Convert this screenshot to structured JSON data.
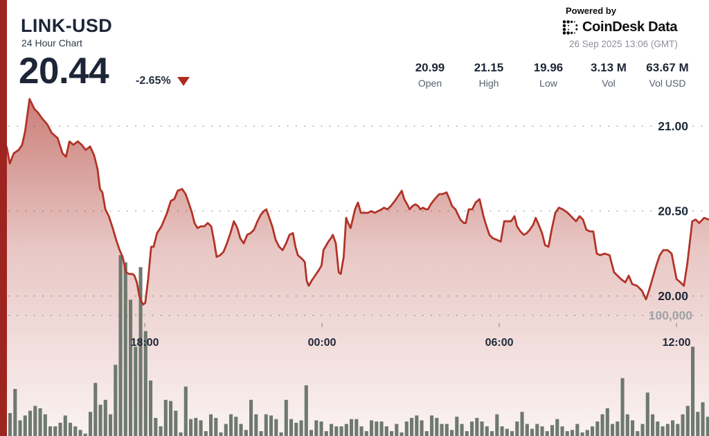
{
  "header": {
    "symbol": "LINK-USD",
    "subtitle": "24 Hour Chart",
    "price": "20.44",
    "change": "-2.65%",
    "change_direction": "down",
    "powered_by": "Powered by",
    "provider": "CoinDesk Data",
    "timestamp": "26 Sep 2025 13:06 (GMT)"
  },
  "stats": [
    {
      "value": "20.99",
      "label": "Open"
    },
    {
      "value": "21.15",
      "label": "High"
    },
    {
      "value": "19.96",
      "label": "Low"
    },
    {
      "value": "3.13 M",
      "label": "Vol"
    },
    {
      "value": "63.67 M",
      "label": "Vol USD"
    }
  ],
  "colors": {
    "accent_line_red": "#b23327",
    "left_strip_red": "#9e2420",
    "volume_bar": "#6e796f",
    "navy_text": "#1e2838",
    "label_gray": "#55606e",
    "timestamp_gray": "#8d9097",
    "grid_dot_gray": "#9aa3ae",
    "volume_label_gray": "#a0a3a8"
  },
  "chart_data": {
    "type": "area",
    "title": "LINK-USD 24 hour price with volume",
    "period_minutes": 1440,
    "summary": {
      "open": 20.99,
      "high": 21.15,
      "low": 19.96,
      "close": 20.44,
      "volume": "3.13 M",
      "volume_usd": "63.67 M"
    },
    "grid": "horizontal-dotted",
    "x_axis": {
      "ticks": [
        {
          "minute": 294,
          "label": "18:00"
        },
        {
          "minute": 654,
          "label": "00:00"
        },
        {
          "minute": 1014,
          "label": "06:00"
        },
        {
          "minute": 1374,
          "label": "12:00"
        }
      ]
    },
    "y_axis": {
      "side": "right",
      "ticks": [
        {
          "price": 21.0,
          "label": "21.00"
        },
        {
          "price": 20.5,
          "label": "20.50"
        },
        {
          "price": 20.0,
          "label": "20.00"
        }
      ],
      "range": [
        19.9,
        21.17
      ]
    },
    "volume_axis": {
      "tick_label": "100,000",
      "tick_value_k": 100
    },
    "price_points": [
      [
        0,
        20.99
      ],
      [
        14,
        20.87
      ],
      [
        20,
        20.78
      ],
      [
        28,
        20.84
      ],
      [
        38,
        20.86
      ],
      [
        45,
        20.89
      ],
      [
        51,
        20.97
      ],
      [
        60,
        21.16
      ],
      [
        70,
        21.1
      ],
      [
        77,
        21.08
      ],
      [
        87,
        21.04
      ],
      [
        96,
        21.01
      ],
      [
        105,
        20.96
      ],
      [
        117,
        20.93
      ],
      [
        127,
        20.84
      ],
      [
        134,
        20.82
      ],
      [
        141,
        20.91
      ],
      [
        149,
        20.89
      ],
      [
        158,
        20.91
      ],
      [
        166,
        20.89
      ],
      [
        174,
        20.86
      ],
      [
        183,
        20.88
      ],
      [
        191,
        20.83
      ],
      [
        198,
        20.75
      ],
      [
        203,
        20.63
      ],
      [
        208,
        20.61
      ],
      [
        214,
        20.51
      ],
      [
        221,
        20.47
      ],
      [
        229,
        20.4
      ],
      [
        236,
        20.33
      ],
      [
        243,
        20.27
      ],
      [
        249,
        20.23
      ],
      [
        256,
        20.14
      ],
      [
        262,
        20.13
      ],
      [
        269,
        20.13
      ],
      [
        273,
        20.12
      ],
      [
        278,
        20.08
      ],
      [
        283,
        20.0
      ],
      [
        287,
        19.97
      ],
      [
        291,
        19.95
      ],
      [
        295,
        19.96
      ],
      [
        301,
        20.1
      ],
      [
        307,
        20.29
      ],
      [
        312,
        20.29
      ],
      [
        319,
        20.37
      ],
      [
        328,
        20.41
      ],
      [
        338,
        20.48
      ],
      [
        347,
        20.56
      ],
      [
        354,
        20.57
      ],
      [
        361,
        20.62
      ],
      [
        370,
        20.63
      ],
      [
        377,
        20.6
      ],
      [
        383,
        20.55
      ],
      [
        390,
        20.49
      ],
      [
        395,
        20.43
      ],
      [
        401,
        20.4
      ],
      [
        408,
        20.41
      ],
      [
        415,
        20.41
      ],
      [
        422,
        20.43
      ],
      [
        429,
        20.41
      ],
      [
        435,
        20.32
      ],
      [
        440,
        20.23
      ],
      [
        447,
        20.24
      ],
      [
        454,
        20.26
      ],
      [
        461,
        20.31
      ],
      [
        468,
        20.37
      ],
      [
        475,
        20.44
      ],
      [
        482,
        20.4
      ],
      [
        488,
        20.34
      ],
      [
        495,
        20.31
      ],
      [
        502,
        20.36
      ],
      [
        509,
        20.37
      ],
      [
        516,
        20.39
      ],
      [
        523,
        20.44
      ],
      [
        530,
        20.48
      ],
      [
        536,
        20.5
      ],
      [
        541,
        20.51
      ],
      [
        547,
        20.46
      ],
      [
        553,
        20.41
      ],
      [
        560,
        20.33
      ],
      [
        567,
        20.29
      ],
      [
        574,
        20.27
      ],
      [
        581,
        20.31
      ],
      [
        588,
        20.36
      ],
      [
        595,
        20.37
      ],
      [
        600,
        20.29
      ],
      [
        605,
        20.24
      ],
      [
        613,
        20.22
      ],
      [
        619,
        20.2
      ],
      [
        623,
        20.09
      ],
      [
        627,
        20.06
      ],
      [
        633,
        20.09
      ],
      [
        640,
        20.12
      ],
      [
        647,
        20.15
      ],
      [
        653,
        20.18
      ],
      [
        657,
        20.27
      ],
      [
        661,
        20.29
      ],
      [
        667,
        20.32
      ],
      [
        672,
        20.34
      ],
      [
        676,
        20.36
      ],
      [
        682,
        20.31
      ],
      [
        688,
        20.14
      ],
      [
        692,
        20.13
      ],
      [
        698,
        20.23
      ],
      [
        703,
        20.46
      ],
      [
        707,
        20.43
      ],
      [
        712,
        20.4
      ],
      [
        717,
        20.46
      ],
      [
        721,
        20.51
      ],
      [
        727,
        20.55
      ],
      [
        733,
        20.49
      ],
      [
        740,
        20.49
      ],
      [
        747,
        20.49
      ],
      [
        754,
        20.5
      ],
      [
        761,
        20.49
      ],
      [
        768,
        20.5
      ],
      [
        775,
        20.51
      ],
      [
        780,
        20.52
      ],
      [
        787,
        20.51
      ],
      [
        794,
        20.53
      ],
      [
        802,
        20.56
      ],
      [
        809,
        20.59
      ],
      [
        816,
        20.62
      ],
      [
        821,
        20.57
      ],
      [
        827,
        20.54
      ],
      [
        832,
        20.51
      ],
      [
        838,
        20.53
      ],
      [
        844,
        20.54
      ],
      [
        849,
        20.53
      ],
      [
        854,
        20.51
      ],
      [
        859,
        20.52
      ],
      [
        865,
        20.51
      ],
      [
        869,
        20.51
      ],
      [
        875,
        20.54
      ],
      [
        880,
        20.56
      ],
      [
        886,
        20.58
      ],
      [
        892,
        20.6
      ],
      [
        899,
        20.6
      ],
      [
        907,
        20.61
      ],
      [
        913,
        20.57
      ],
      [
        918,
        20.53
      ],
      [
        925,
        20.51
      ],
      [
        930,
        20.48
      ],
      [
        935,
        20.45
      ],
      [
        942,
        20.43
      ],
      [
        946,
        20.43
      ],
      [
        952,
        20.51
      ],
      [
        959,
        20.51
      ],
      [
        966,
        20.55
      ],
      [
        974,
        20.57
      ],
      [
        982,
        20.47
      ],
      [
        987,
        20.42
      ],
      [
        994,
        20.36
      ],
      [
        1001,
        20.34
      ],
      [
        1010,
        20.33
      ],
      [
        1017,
        20.32
      ],
      [
        1024,
        20.44
      ],
      [
        1031,
        20.44
      ],
      [
        1038,
        20.44
      ],
      [
        1045,
        20.47
      ],
      [
        1050,
        20.41
      ],
      [
        1057,
        20.38
      ],
      [
        1064,
        20.36
      ],
      [
        1070,
        20.37
      ],
      [
        1076,
        20.39
      ],
      [
        1083,
        20.42
      ],
      [
        1088,
        20.46
      ],
      [
        1094,
        20.42
      ],
      [
        1101,
        20.37
      ],
      [
        1107,
        20.3
      ],
      [
        1114,
        20.29
      ],
      [
        1121,
        20.4
      ],
      [
        1128,
        20.49
      ],
      [
        1135,
        20.52
      ],
      [
        1143,
        20.51
      ],
      [
        1153,
        20.49
      ],
      [
        1163,
        20.46
      ],
      [
        1170,
        20.44
      ],
      [
        1177,
        20.47
      ],
      [
        1184,
        20.45
      ],
      [
        1191,
        20.39
      ],
      [
        1198,
        20.38
      ],
      [
        1205,
        20.38
      ],
      [
        1212,
        20.25
      ],
      [
        1219,
        20.24
      ],
      [
        1228,
        20.25
      ],
      [
        1238,
        20.24
      ],
      [
        1247,
        20.14
      ],
      [
        1254,
        20.12
      ],
      [
        1261,
        20.1
      ],
      [
        1270,
        20.08
      ],
      [
        1277,
        20.12
      ],
      [
        1284,
        20.07
      ],
      [
        1294,
        20.06
      ],
      [
        1304,
        20.03
      ],
      [
        1312,
        19.98
      ],
      [
        1318,
        20.03
      ],
      [
        1325,
        20.1
      ],
      [
        1333,
        20.18
      ],
      [
        1340,
        20.24
      ],
      [
        1347,
        20.27
      ],
      [
        1356,
        20.27
      ],
      [
        1364,
        20.25
      ],
      [
        1374,
        20.1
      ],
      [
        1382,
        20.08
      ],
      [
        1389,
        20.06
      ],
      [
        1396,
        20.19
      ],
      [
        1406,
        20.44
      ],
      [
        1413,
        20.45
      ],
      [
        1420,
        20.43
      ],
      [
        1430,
        20.46
      ],
      [
        1440,
        20.45
      ]
    ],
    "volume_unit": "thousands",
    "volumes_k": [
      19,
      39,
      13,
      17,
      21,
      25,
      23,
      18,
      8,
      8,
      11,
      17,
      11,
      8,
      5,
      2,
      20,
      44,
      26,
      30,
      18,
      59,
      150,
      144,
      113,
      74,
      140,
      87,
      46,
      15,
      8,
      30,
      29,
      21,
      3,
      41,
      14,
      15,
      13,
      4,
      18,
      15,
      3,
      10,
      18,
      16,
      10,
      5,
      30,
      18,
      4,
      18,
      17,
      14,
      3,
      30,
      14,
      11,
      13,
      42,
      5,
      13,
      12,
      4,
      10,
      8,
      8,
      10,
      14,
      14,
      8,
      4,
      13,
      12,
      12,
      8,
      4,
      10,
      3,
      12,
      15,
      17,
      13,
      4,
      17,
      15,
      10,
      10,
      5,
      16,
      10,
      4,
      12,
      15,
      12,
      8,
      4,
      18,
      8,
      6,
      4,
      12,
      20,
      10,
      6,
      10,
      8,
      4,
      9,
      14,
      8,
      4,
      5,
      10,
      3,
      5,
      8,
      12,
      18,
      23,
      10,
      12,
      48,
      18,
      13,
      4,
      10,
      36,
      18,
      12,
      8,
      10,
      13,
      10,
      18,
      25,
      74,
      20,
      28,
      16
    ]
  }
}
